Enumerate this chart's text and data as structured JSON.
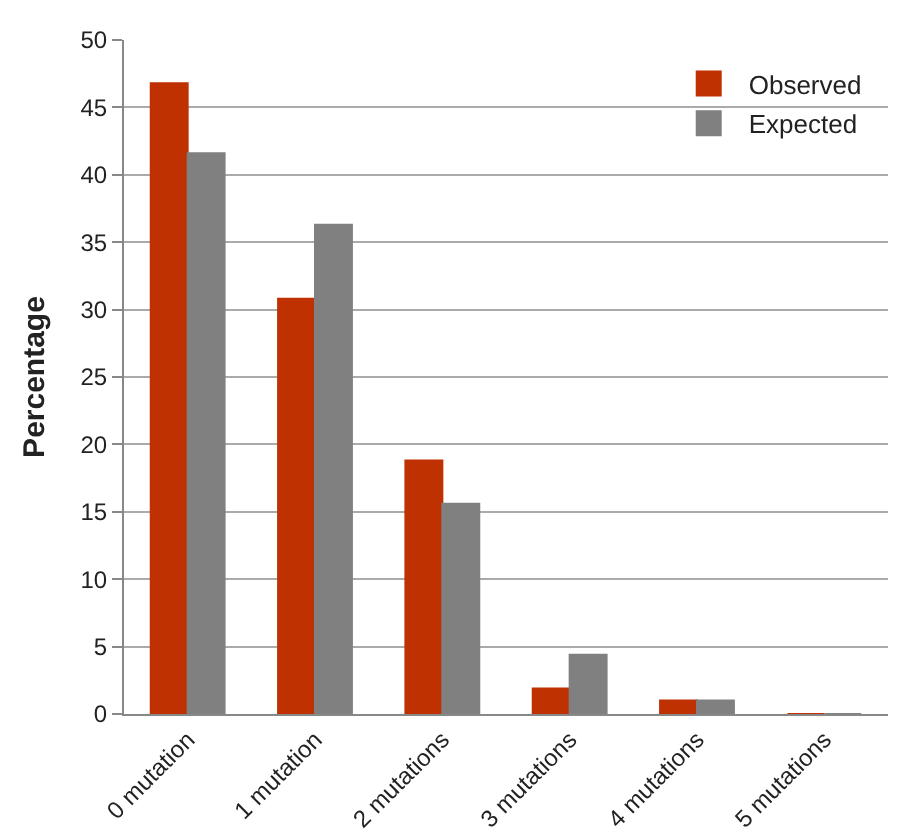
{
  "chart_data": {
    "type": "bar",
    "ylabel": "Percentage",
    "categories": [
      "0 mutation",
      "1 mutation",
      "2 mutations",
      "3 mutations",
      "4 mutations",
      "5 mutations"
    ],
    "series": [
      {
        "name": "Observed",
        "color": "#bf3100",
        "values": [
          46.8,
          30.8,
          18.8,
          1.9,
          1.0,
          0
        ]
      },
      {
        "name": "Expected",
        "color": "#808080",
        "values": [
          41.6,
          36.3,
          15.6,
          4.4,
          1.0,
          0
        ]
      }
    ],
    "ylim": [
      0,
      50
    ],
    "yticks": [
      0,
      5,
      10,
      15,
      20,
      25,
      30,
      35,
      40,
      45,
      50
    ],
    "grid": "y",
    "legend": "top right"
  }
}
